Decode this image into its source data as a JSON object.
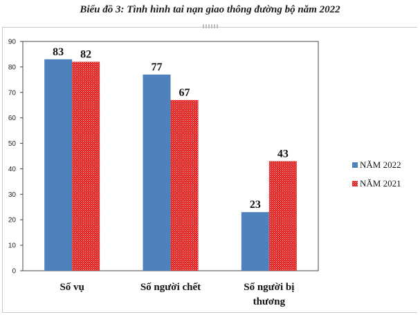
{
  "title": "Biểu đồ 3: Tình hình tai nạn giao thông đường bộ năm 2022",
  "chart_data": {
    "type": "bar",
    "categories": [
      [
        "Số vụ"
      ],
      [
        "Số người chết"
      ],
      [
        "Số người bị",
        "thương"
      ]
    ],
    "series": [
      {
        "name": "NĂM 2022",
        "values": [
          83,
          77,
          23
        ],
        "color": "#4f81bd"
      },
      {
        "name": "NĂM 2021",
        "values": [
          82,
          67,
          43
        ],
        "color": "#e31b1b"
      }
    ],
    "ylim": [
      0,
      90
    ],
    "yticks": [
      0,
      10,
      20,
      30,
      40,
      50,
      60,
      70,
      80,
      90
    ],
    "grid": false,
    "legend": "right"
  }
}
